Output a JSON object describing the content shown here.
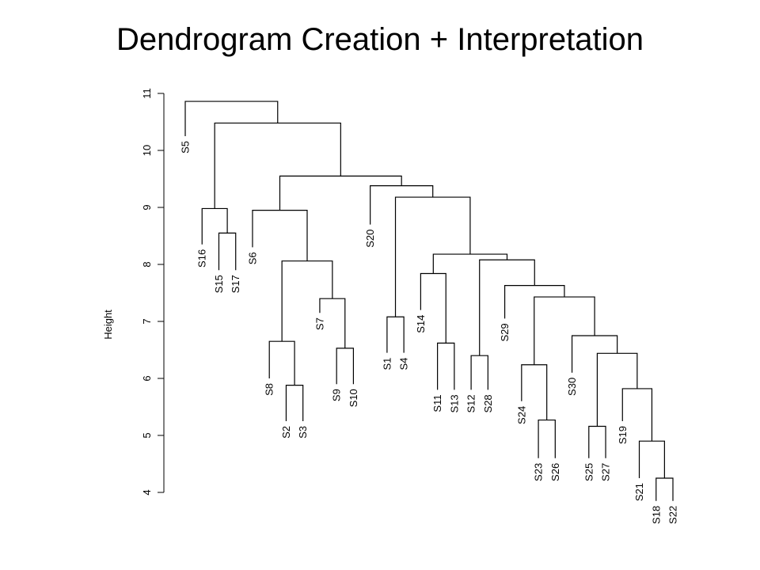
{
  "slide": {
    "title": "Dendrogram Creation + Interpretation"
  },
  "chart_data": {
    "type": "dendrogram",
    "ylabel": "Height",
    "ylim": [
      4,
      11
    ],
    "yticks": [
      "4",
      "5",
      "6",
      "7",
      "8",
      "9",
      "10",
      "11"
    ],
    "leaves": [
      {
        "label": "S5",
        "end": 10.25
      },
      {
        "label": "S16",
        "end": 8.35
      },
      {
        "label": "S15",
        "end": 7.9
      },
      {
        "label": "S17",
        "end": 7.9
      },
      {
        "label": "S6",
        "end": 8.3
      },
      {
        "label": "S8",
        "end": 6.0
      },
      {
        "label": "S2",
        "end": 5.25
      },
      {
        "label": "S3",
        "end": 5.25
      },
      {
        "label": "S7",
        "end": 7.15
      },
      {
        "label": "S9",
        "end": 5.9
      },
      {
        "label": "S10",
        "end": 5.9
      },
      {
        "label": "S20",
        "end": 8.7
      },
      {
        "label": "S1",
        "end": 6.45
      },
      {
        "label": "S4",
        "end": 6.45
      },
      {
        "label": "S14",
        "end": 7.2
      },
      {
        "label": "S11",
        "end": 5.8
      },
      {
        "label": "S13",
        "end": 5.8
      },
      {
        "label": "S12",
        "end": 5.8
      },
      {
        "label": "S28",
        "end": 5.8
      },
      {
        "label": "S29",
        "end": 7.05
      },
      {
        "label": "S24",
        "end": 5.6
      },
      {
        "label": "S23",
        "end": 4.6
      },
      {
        "label": "S26",
        "end": 4.6
      },
      {
        "label": "S30",
        "end": 6.1
      },
      {
        "label": "S25",
        "end": 4.6
      },
      {
        "label": "S27",
        "end": 4.6
      },
      {
        "label": "S19",
        "end": 5.25
      },
      {
        "label": "S21",
        "end": 4.25
      },
      {
        "label": "S18",
        "end": 3.85
      },
      {
        "label": "S22",
        "end": 3.85
      }
    ],
    "merges": [
      {
        "a": "L:S15",
        "b": "L:S17",
        "height": 8.55
      },
      {
        "a": "L:S16",
        "b": "N:0",
        "height": 8.98
      },
      {
        "a": "L:S2",
        "b": "L:S3",
        "height": 5.88
      },
      {
        "a": "L:S8",
        "b": "N:2",
        "height": 6.65
      },
      {
        "a": "L:S9",
        "b": "L:S10",
        "height": 6.53
      },
      {
        "a": "L:S7",
        "b": "N:4",
        "height": 7.4
      },
      {
        "a": "N:3",
        "b": "N:5",
        "height": 8.06
      },
      {
        "a": "L:S6",
        "b": "N:6",
        "height": 8.95
      },
      {
        "a": "L:S1",
        "b": "L:S4",
        "height": 7.08
      },
      {
        "a": "L:S11",
        "b": "L:S13",
        "height": 6.62
      },
      {
        "a": "L:S14",
        "b": "N:9",
        "height": 7.84
      },
      {
        "a": "L:S12",
        "b": "L:S28",
        "height": 6.4
      },
      {
        "a": "L:S23",
        "b": "L:S26",
        "height": 5.27
      },
      {
        "a": "L:S24",
        "b": "N:12",
        "height": 6.24
      },
      {
        "a": "L:S25",
        "b": "L:S27",
        "height": 5.16
      },
      {
        "a": "L:S18",
        "b": "L:S22",
        "height": 4.25
      },
      {
        "a": "L:S21",
        "b": "N:15",
        "height": 4.9
      },
      {
        "a": "L:S19",
        "b": "N:16",
        "height": 5.82
      },
      {
        "a": "N:14",
        "b": "N:17",
        "height": 6.44
      },
      {
        "a": "L:S30",
        "b": "N:18",
        "height": 6.75
      },
      {
        "a": "N:13",
        "b": "N:19",
        "height": 7.43
      },
      {
        "a": "L:S29",
        "b": "N:20",
        "height": 7.63
      },
      {
        "a": "N:11",
        "b": "N:21",
        "height": 8.08
      },
      {
        "a": "N:10",
        "b": "N:22",
        "height": 8.18
      },
      {
        "a": "N:8",
        "b": "N:23",
        "height": 9.18
      },
      {
        "a": "L:S20",
        "b": "N:24",
        "height": 9.38
      },
      {
        "a": "N:7",
        "b": "N:25",
        "height": 9.55
      },
      {
        "a": "N:1",
        "b": "N:26",
        "height": 10.48
      },
      {
        "a": "L:S5",
        "b": "N:27",
        "height": 10.86
      }
    ]
  }
}
